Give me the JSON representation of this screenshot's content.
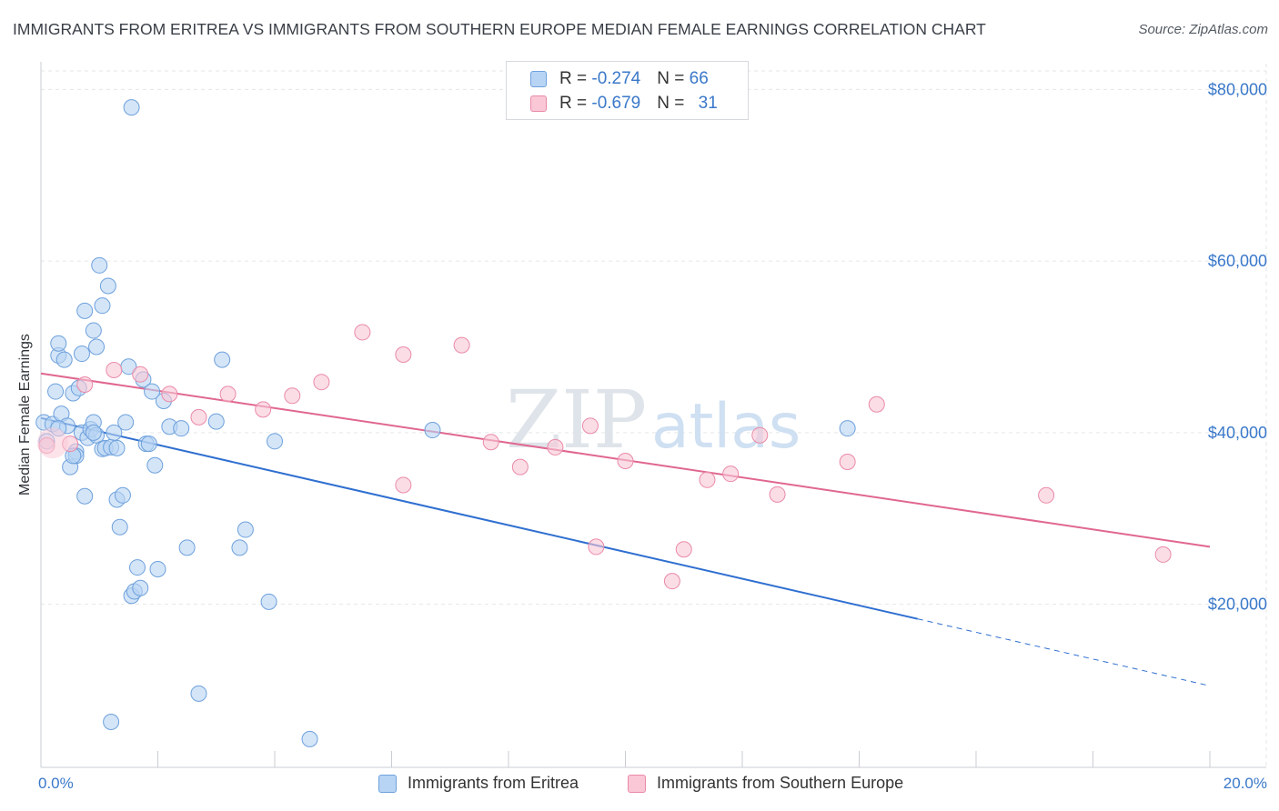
{
  "title": "IMMIGRANTS FROM ERITREA VS IMMIGRANTS FROM SOUTHERN EUROPE MEDIAN FEMALE EARNINGS CORRELATION CHART",
  "source": "Source: ZipAtlas.com",
  "watermark": {
    "zip": "ZIP",
    "atlas": "atlas"
  },
  "legend_top": [
    {
      "r_label": "R = ",
      "r_value": "-0.274",
      "n_label": "N = ",
      "n_value": "66",
      "swatch_fill": "#b8d4f4",
      "swatch_stroke": "#6ea1dc"
    },
    {
      "r_label": "R = ",
      "r_value": "-0.679",
      "n_label": "N = ",
      "n_value": "31",
      "swatch_fill": "#f9c7d6",
      "swatch_stroke": "#ea8aa8"
    }
  ],
  "legend_bottom": [
    {
      "label": "Immigrants from Eritrea",
      "swatch_fill": "#b8d4f4",
      "swatch_stroke": "#6ea1dc"
    },
    {
      "label": "Immigrants from Southern Europe",
      "swatch_fill": "#f9c7d6",
      "swatch_stroke": "#ea8aa8"
    }
  ],
  "chart_data": {
    "type": "scatter",
    "title": "IMMIGRANTS FROM ERITREA VS IMMIGRANTS FROM SOUTHERN EUROPE MEDIAN FEMALE EARNINGS CORRELATION CHART",
    "xlabel": "",
    "ylabel": "Median Female Earnings",
    "xlim": [
      0,
      20
    ],
    "ylim": [
      1000,
      83000
    ],
    "x_tick_labels": [
      "0.0%",
      "20.0%"
    ],
    "y_ticks": [
      20000,
      40000,
      60000,
      80000
    ],
    "y_tick_labels": [
      "$20,000",
      "$40,000",
      "$60,000",
      "$80,000"
    ],
    "grid": true,
    "legend_position": "top-center",
    "series": [
      {
        "name": "Immigrants from Eritrea",
        "color": "#6ea1dc",
        "fill": "#b8d4f4",
        "line_color": "#2f6fd0",
        "points": [
          [
            0.05,
            41200
          ],
          [
            0.1,
            39000
          ],
          [
            0.2,
            41000
          ],
          [
            0.25,
            44800
          ],
          [
            0.3,
            49000
          ],
          [
            0.3,
            50400
          ],
          [
            0.35,
            42200
          ],
          [
            0.4,
            48500
          ],
          [
            0.45,
            40800
          ],
          [
            0.5,
            36000
          ],
          [
            0.55,
            44600
          ],
          [
            0.6,
            37800
          ],
          [
            0.6,
            37300
          ],
          [
            0.65,
            45200
          ],
          [
            0.7,
            40000
          ],
          [
            0.7,
            49200
          ],
          [
            0.75,
            54200
          ],
          [
            0.75,
            32600
          ],
          [
            0.8,
            39400
          ],
          [
            0.85,
            40400
          ],
          [
            0.9,
            51900
          ],
          [
            0.9,
            41200
          ],
          [
            0.95,
            39700
          ],
          [
            0.95,
            50000
          ],
          [
            1.0,
            59500
          ],
          [
            1.05,
            54800
          ],
          [
            1.05,
            38100
          ],
          [
            1.1,
            38200
          ],
          [
            1.15,
            57100
          ],
          [
            1.2,
            38300
          ],
          [
            1.25,
            40000
          ],
          [
            1.3,
            32200
          ],
          [
            1.35,
            29000
          ],
          [
            1.4,
            32700
          ],
          [
            1.45,
            41200
          ],
          [
            1.5,
            47700
          ],
          [
            1.55,
            21000
          ],
          [
            1.6,
            21500
          ],
          [
            1.65,
            24300
          ],
          [
            1.7,
            21900
          ],
          [
            1.75,
            46200
          ],
          [
            1.8,
            38700
          ],
          [
            1.85,
            38700
          ],
          [
            1.9,
            44800
          ],
          [
            1.95,
            36200
          ],
          [
            2.0,
            24100
          ],
          [
            2.1,
            43700
          ],
          [
            2.2,
            40700
          ],
          [
            2.4,
            40500
          ],
          [
            2.5,
            26600
          ],
          [
            2.7,
            9600
          ],
          [
            3.0,
            41300
          ],
          [
            3.1,
            48500
          ],
          [
            3.4,
            26600
          ],
          [
            3.5,
            28700
          ],
          [
            3.9,
            20300
          ],
          [
            4.0,
            39000
          ],
          [
            4.6,
            4300
          ],
          [
            6.7,
            40300
          ],
          [
            13.8,
            40500
          ],
          [
            1.55,
            77900
          ],
          [
            1.2,
            6300
          ],
          [
            0.3,
            40500
          ],
          [
            0.55,
            37300
          ],
          [
            0.9,
            40000
          ],
          [
            1.3,
            38200
          ]
        ],
        "trend": {
          "x0": 0,
          "y0": 41700,
          "x1": 15.0,
          "y1": 18300,
          "dash_to_x": 20.0,
          "dash_to_y": 10500
        }
      },
      {
        "name": "Immigrants from Southern Europe",
        "color": "#ea8aa8",
        "fill": "#f9c7d6",
        "line_color": "#e0678f",
        "points": [
          [
            0.1,
            38500
          ],
          [
            0.5,
            38700
          ],
          [
            0.75,
            45600
          ],
          [
            1.25,
            47300
          ],
          [
            1.7,
            46800
          ],
          [
            2.2,
            44500
          ],
          [
            2.7,
            41800
          ],
          [
            3.2,
            44500
          ],
          [
            3.8,
            42700
          ],
          [
            4.3,
            44300
          ],
          [
            4.8,
            45900
          ],
          [
            5.5,
            51700
          ],
          [
            6.2,
            49100
          ],
          [
            6.2,
            33900
          ],
          [
            7.2,
            50200
          ],
          [
            7.7,
            38900
          ],
          [
            8.2,
            36000
          ],
          [
            8.8,
            38300
          ],
          [
            9.4,
            40800
          ],
          [
            9.5,
            26700
          ],
          [
            10.0,
            36700
          ],
          [
            10.8,
            22700
          ],
          [
            11.0,
            26400
          ],
          [
            11.4,
            34500
          ],
          [
            11.8,
            35200
          ],
          [
            12.3,
            39700
          ],
          [
            12.6,
            32800
          ],
          [
            13.8,
            36600
          ],
          [
            14.3,
            43300
          ],
          [
            17.2,
            32700
          ],
          [
            19.2,
            25800
          ]
        ],
        "trend": {
          "x0": 0,
          "y0": 46900,
          "x1": 20.0,
          "y1": 26700
        }
      }
    ]
  }
}
